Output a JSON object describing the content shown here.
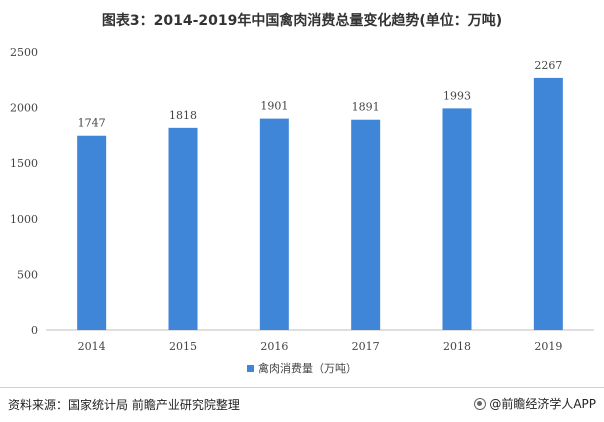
{
  "title": "图表3：2014-2019年中国禽肉消费总量变化趋势(单位：万吨)",
  "source": "资料来源：国家统计局 前瞻产业研究院整理",
  "credit": "@前瞻经济学人APP",
  "colors": {
    "bar": "#3f86d9",
    "axis": "#bfbfbf",
    "text": "#444444"
  },
  "chart_data": {
    "type": "bar",
    "title": "图表3：2014-2019年中国禽肉消费总量变化趋势(单位：万吨)",
    "categories": [
      "2014",
      "2015",
      "2016",
      "2017",
      "2018",
      "2019"
    ],
    "series": [
      {
        "name": "禽肉消费量（万吨）",
        "values": [
          1747,
          1818,
          1901,
          1891,
          1993,
          2267
        ]
      }
    ],
    "yticks": [
      0,
      500,
      1000,
      1500,
      2000,
      2500
    ],
    "ylim": [
      0,
      2500
    ],
    "grid": false,
    "legend_position": "bottom-center",
    "data_labels": true
  }
}
